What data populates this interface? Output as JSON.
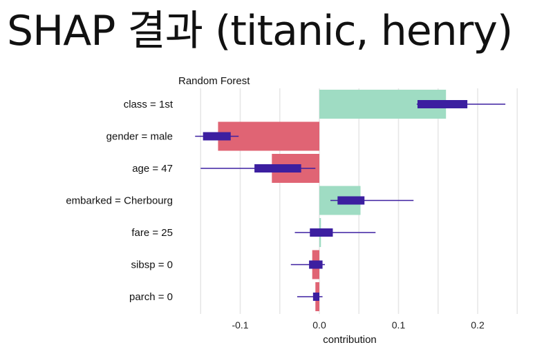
{
  "page": {
    "title": "SHAP 결과 (titanic, henry)"
  },
  "chart_data": {
    "type": "bar",
    "subtitle": "Random Forest",
    "xlabel": "contribution",
    "xlim": [
      -0.17,
      0.25
    ],
    "xticks": [
      -0.1,
      0.0,
      0.1,
      0.2
    ],
    "tick_labels": [
      "-0.1",
      "0.0",
      "0.1",
      "0.2"
    ],
    "grid": true,
    "colors": {
      "positive": "#9fdcc3",
      "negative": "#e06474",
      "box": "#3c1fa0"
    },
    "features": [
      {
        "label": "class = 1st",
        "contribution": 0.16,
        "whisker": [
          0.123,
          0.235
        ],
        "box": [
          0.124,
          0.187
        ]
      },
      {
        "label": "gender = male",
        "contribution": -0.128,
        "whisker": [
          -0.157,
          -0.102
        ],
        "box": [
          -0.147,
          -0.112
        ]
      },
      {
        "label": "age = 47",
        "contribution": -0.06,
        "whisker": [
          -0.15,
          -0.005
        ],
        "box": [
          -0.082,
          -0.023
        ]
      },
      {
        "label": "embarked = Cherbourg",
        "contribution": 0.052,
        "whisker": [
          0.014,
          0.119
        ],
        "box": [
          0.023,
          0.057
        ]
      },
      {
        "label": "fare = 25",
        "contribution": 0.002,
        "whisker": [
          -0.031,
          0.071
        ],
        "box": [
          -0.012,
          0.017
        ]
      },
      {
        "label": "sibsp = 0",
        "contribution": -0.009,
        "whisker": [
          -0.036,
          0.007
        ],
        "box": [
          -0.013,
          0.004
        ]
      },
      {
        "label": "parch = 0",
        "contribution": -0.005,
        "whisker": [
          -0.028,
          0.004
        ],
        "box": [
          -0.008,
          0.0
        ]
      }
    ]
  }
}
